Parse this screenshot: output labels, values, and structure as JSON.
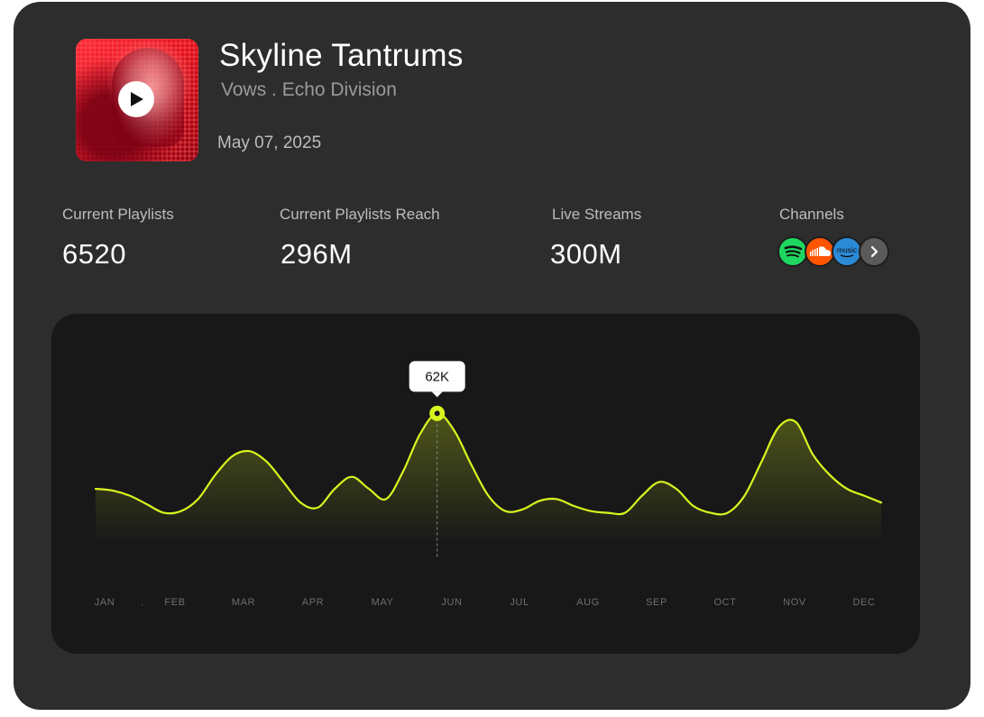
{
  "track": {
    "title": "Skyline Tantrums",
    "subtitle": "Vows . Echo Division",
    "date": "May 07, 2025"
  },
  "stats": [
    {
      "label": "Current Playlists",
      "value": "6520"
    },
    {
      "label": "Current Playlists Reach",
      "value": "296M"
    },
    {
      "label": "Live Streams",
      "value": "300M"
    }
  ],
  "channels": {
    "label": "Channels",
    "items": [
      {
        "name": "spotify-icon",
        "color": "#1ed760"
      },
      {
        "name": "soundcloud-icon",
        "color": "#ff5500"
      },
      {
        "name": "amazon-music-icon",
        "color": "#2b8ad6",
        "text": "music"
      },
      {
        "name": "chevron-right-icon",
        "color": "#5a5a5a"
      }
    ]
  },
  "colors": {
    "accent": "#d9f520",
    "card": "#2d2d2d",
    "panel": "#181818"
  },
  "chart_data": {
    "type": "line",
    "categories": [
      "JAN",
      ".",
      "FEB",
      "MAR",
      "APR",
      "MAY",
      "JUN",
      "JUL",
      "AUG",
      "SEP",
      "OCT",
      "NOV",
      "DEC"
    ],
    "x": [
      0,
      0.25,
      0.5,
      0.75,
      1,
      1.25,
      1.5,
      1.75,
      2,
      2.25,
      2.5,
      2.75,
      3,
      3.25,
      3.5,
      3.75,
      4,
      4.25,
      4.5,
      4.75,
      5,
      5.25,
      5.5,
      5.75,
      6,
      6.25,
      6.5,
      6.75,
      7,
      7.25,
      7.5,
      7.75,
      8,
      8.25,
      8.5,
      8.75,
      9,
      9.25,
      9.5,
      9.75,
      10,
      10.25,
      10.5,
      10.75,
      11,
      11.25,
      11.5
    ],
    "values": [
      40,
      39.5,
      38,
      35.5,
      33,
      33.5,
      37,
      44,
      49.5,
      51,
      48,
      42,
      36,
      34.5,
      40,
      43.5,
      40,
      37,
      45,
      56,
      62,
      57,
      47,
      38,
      33.5,
      34,
      36.5,
      37,
      35,
      33.5,
      33,
      33,
      38,
      42,
      40,
      35,
      33,
      33,
      38,
      48,
      58,
      59.5,
      50,
      44,
      40,
      38,
      36
    ],
    "highlight": {
      "x": 5,
      "value": 62,
      "label": "62K"
    },
    "ylim": [
      20,
      70
    ],
    "grid": false,
    "legend": "none"
  }
}
